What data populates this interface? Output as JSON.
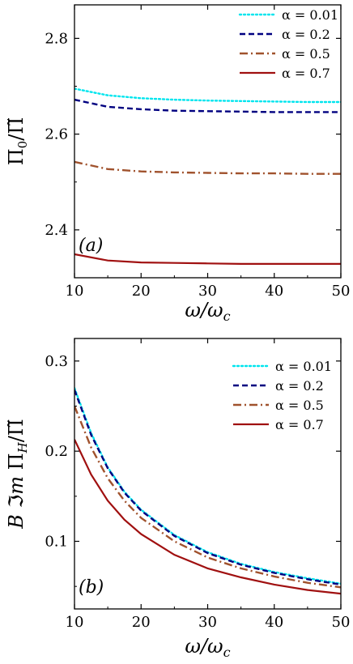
{
  "chart_data": [
    {
      "type": "line",
      "panel_label": "(a)",
      "xlabel": "ω/ω_c",
      "ylabel": "Π_0/Π̃",
      "xlim": [
        10,
        50
      ],
      "ylim": [
        2.3,
        2.87
      ],
      "xticks": [
        10,
        20,
        30,
        40,
        50
      ],
      "yticks": [
        2.4,
        2.6,
        2.8
      ],
      "legend_position": "top-right",
      "series": [
        {
          "name": "α = 0.01",
          "color": "#00e5ee",
          "dash": "dotted",
          "x": [
            10,
            15,
            20,
            25,
            30,
            35,
            40,
            45,
            50
          ],
          "y": [
            2.695,
            2.681,
            2.675,
            2.672,
            2.67,
            2.669,
            2.668,
            2.667,
            2.667
          ]
        },
        {
          "name": "α = 0.2",
          "color": "#000080",
          "dash": "dashed",
          "x": [
            10,
            15,
            20,
            25,
            30,
            35,
            40,
            45,
            50
          ],
          "y": [
            2.672,
            2.657,
            2.652,
            2.649,
            2.648,
            2.647,
            2.646,
            2.646,
            2.646
          ]
        },
        {
          "name": "α = 0.5",
          "color": "#a0522d",
          "dash": "dashdot",
          "x": [
            10,
            15,
            20,
            25,
            30,
            35,
            40,
            45,
            50
          ],
          "y": [
            2.542,
            2.527,
            2.522,
            2.52,
            2.519,
            2.518,
            2.518,
            2.517,
            2.517
          ]
        },
        {
          "name": "α = 0.7",
          "color": "#a01010",
          "dash": "solid",
          "x": [
            10,
            15,
            20,
            25,
            30,
            35,
            40,
            45,
            50
          ],
          "y": [
            2.349,
            2.336,
            2.332,
            2.331,
            2.33,
            2.329,
            2.329,
            2.329,
            2.329
          ]
        }
      ]
    },
    {
      "type": "line",
      "panel_label": "(b)",
      "xlabel": "ω/ω_c",
      "ylabel": "B ℑm Π_H/Π̃",
      "xlim": [
        10,
        50
      ],
      "ylim": [
        0.025,
        0.325
      ],
      "xticks": [
        10,
        20,
        30,
        40,
        50
      ],
      "yticks": [
        0.1,
        0.2,
        0.3
      ],
      "legend_position": "top-right",
      "series": [
        {
          "name": "α = 0.01",
          "color": "#00e5ee",
          "dash": "dotted",
          "x": [
            10,
            12.5,
            15,
            17.5,
            20,
            25,
            30,
            35,
            40,
            45,
            50
          ],
          "y": [
            0.27,
            0.22,
            0.182,
            0.155,
            0.135,
            0.107,
            0.088,
            0.075,
            0.066,
            0.059,
            0.053
          ]
        },
        {
          "name": "α = 0.2",
          "color": "#000080",
          "dash": "dashed",
          "x": [
            10,
            12.5,
            15,
            17.5,
            20,
            25,
            30,
            35,
            40,
            45,
            50
          ],
          "y": [
            0.268,
            0.218,
            0.181,
            0.154,
            0.134,
            0.106,
            0.087,
            0.074,
            0.065,
            0.058,
            0.052
          ]
        },
        {
          "name": "α = 0.5",
          "color": "#a0522d",
          "dash": "dashdot",
          "x": [
            10,
            12.5,
            15,
            17.5,
            20,
            25,
            30,
            35,
            40,
            45,
            50
          ],
          "y": [
            0.25,
            0.204,
            0.17,
            0.145,
            0.126,
            0.1,
            0.082,
            0.07,
            0.061,
            0.054,
            0.049
          ]
        },
        {
          "name": "α = 0.7",
          "color": "#a01010",
          "dash": "solid",
          "x": [
            10,
            12.5,
            15,
            17.5,
            20,
            25,
            30,
            35,
            40,
            45,
            50
          ],
          "y": [
            0.213,
            0.174,
            0.145,
            0.124,
            0.108,
            0.085,
            0.07,
            0.06,
            0.052,
            0.046,
            0.042
          ]
        }
      ]
    }
  ]
}
